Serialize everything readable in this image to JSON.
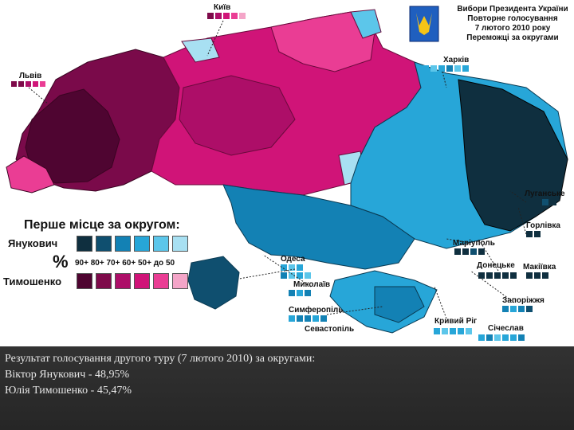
{
  "title": {
    "line1": "Вибори Президента України",
    "line2": "Повторне голосування",
    "line3": "7 лютого 2010 року",
    "line4": "Переможці за округами"
  },
  "legend": {
    "title": "Перше місце за округом:",
    "candidate_a": "Янукович",
    "candidate_b": "Тимошенко",
    "percent_sign": "%",
    "thresholds": "90+ 80+ 70+ 60+ 50+ до 50",
    "yanukovych_colors": [
      "#0f2f3f",
      "#0f4f6f",
      "#1381b4",
      "#27a6d8",
      "#5cc6ea",
      "#a8e0f2"
    ],
    "tymoshenko_colors": [
      "#4e0430",
      "#7e0a4a",
      "#ad0e68",
      "#d01478",
      "#ea3d94",
      "#f4a5c8"
    ]
  },
  "cities": {
    "kyiv": "Київ",
    "lviv": "Львів",
    "kharkiv": "Харків",
    "luhansk": "Луганське",
    "horlivka": "Горлівка",
    "mariupol": "Маріуполь",
    "donetsk": "Донецьке",
    "makiivka": "Макіївка",
    "zaporizhzhia": "Запоріжжя",
    "kryvyi_rih": "Кривий Ріг",
    "sichoslav": "Січеслав",
    "odesa": "Одеса",
    "mykolaiv": "Миколаїв",
    "simferopol": "Симферопіль",
    "sevastopol": "Севастопіль"
  },
  "caption": {
    "line1": "Результат голосування другого туру (7 лютого 2010) за округами:",
    "line2": "Віктор Янукович - 48,95%",
    "line3": "Юлія Тимошенко - 45,47%"
  }
}
